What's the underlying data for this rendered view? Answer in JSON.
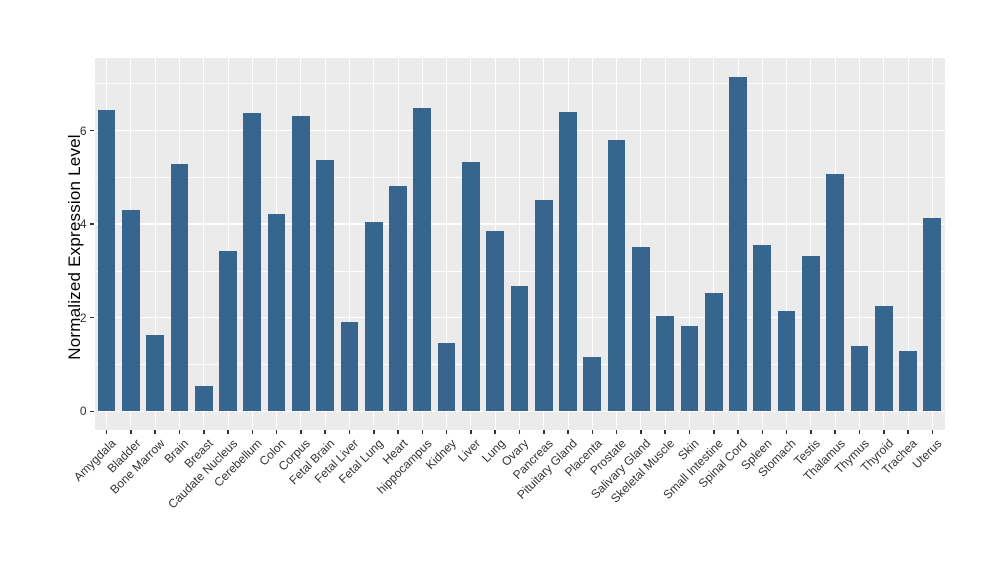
{
  "chart_data": {
    "type": "bar",
    "title": "",
    "xlabel": "",
    "ylabel": "Normalized Expression Level",
    "categories": [
      "Amygdala",
      "Bladder",
      "Bone Marrow",
      "Brain",
      "Breast",
      "Caudate Nucleus",
      "Cerebellum",
      "Colon",
      "Corpus",
      "Fetal Brain",
      "Fetal Liver",
      "Fetal Lung",
      "Heart",
      "hippocampus",
      "Kidney",
      "Liver",
      "Lung",
      "Ovary",
      "Pancreas",
      "Pituitary Gland",
      "Placenta",
      "Prostate",
      "Salivary Gland",
      "Skeletal Muscle",
      "Skin",
      "Small Intestine",
      "Spinal Cord",
      "Spleen",
      "Stomach",
      "Testis",
      "Thalamus",
      "Thymus",
      "Thyroid",
      "Trachea",
      "Uterus"
    ],
    "values": [
      6.43,
      4.3,
      1.62,
      5.28,
      0.55,
      3.43,
      6.38,
      4.22,
      6.3,
      5.38,
      1.9,
      4.04,
      4.82,
      6.48,
      1.46,
      5.32,
      3.86,
      2.68,
      4.52,
      6.4,
      1.16,
      5.8,
      3.52,
      2.04,
      1.82,
      2.52,
      7.15,
      3.56,
      2.14,
      3.32,
      5.08,
      1.4,
      2.26,
      1.28,
      4.12
    ],
    "y_major_ticks": [
      0,
      2,
      4,
      6
    ],
    "y_minor_ticks": [
      1,
      3,
      5,
      7
    ],
    "ylim": [
      -0.4,
      7.55
    ],
    "x_tick_rotation_deg": 45,
    "grid": "on",
    "legend": "none",
    "colors": {
      "bar": "#36658D",
      "panel_background": "#EBEBEB",
      "grid_major": "#FFFFFF",
      "grid_minor": "#FFFFFF",
      "axis_text": "#333333",
      "axis_title": "#000000",
      "figure_background": "#FFFFFF"
    }
  }
}
